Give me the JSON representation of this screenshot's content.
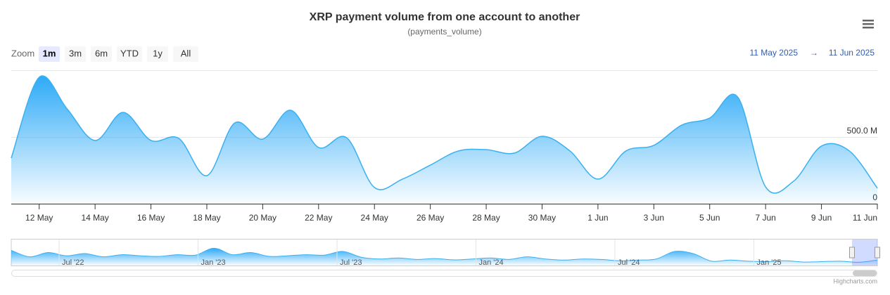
{
  "chart_data": {
    "type": "area",
    "title": "XRP payment volume from one account to another",
    "subtitle": "(payments_volume)",
    "zoom_label": "Zoom",
    "zoom_buttons": [
      "1m",
      "3m",
      "6m",
      "YTD",
      "1y",
      "All"
    ],
    "selected_button": "1m",
    "range_from": "11 May 2025",
    "range_arrow": "→",
    "range_to": "11 Jun 2025",
    "categories": [
      null,
      "12 May",
      null,
      "14 May",
      null,
      "16 May",
      null,
      "18 May",
      null,
      "20 May",
      null,
      "22 May",
      null,
      "24 May",
      null,
      "26 May",
      null,
      "28 May",
      null,
      "30 May",
      null,
      "1 Jun",
      null,
      "3 Jun",
      null,
      "5 Jun",
      null,
      "7 Jun",
      null,
      "9 Jun",
      null,
      "11 Jun"
    ],
    "series": [
      {
        "name": "payments_volume",
        "color": "#3ab0f0",
        "values": [
          342000000,
          947000000,
          710000000,
          474000000,
          684000000,
          474000000,
          489000000,
          210000000,
          605000000,
          484000000,
          700000000,
          421000000,
          495000000,
          121000000,
          184000000,
          289000000,
          395000000,
          405000000,
          379000000,
          505000000,
          395000000,
          184000000,
          395000000,
          437000000,
          589000000,
          642000000,
          800000000,
          126000000,
          168000000,
          432000000,
          395000000,
          116000000
        ]
      }
    ],
    "ylim": [
      0,
      1000000000
    ],
    "yticks": [
      0,
      {
        "value": 500000000,
        "label": "500.0 M"
      }
    ],
    "navigator": {
      "labels": [
        "Jul '22",
        "Jan '23",
        "Jul '23",
        "Jan '24",
        "Jul '24",
        "Jan '25"
      ],
      "values": [
        700000000,
        400000000,
        600000000,
        450000000,
        550000000,
        400000000,
        500000000,
        450000000,
        420000000,
        500000000,
        480000000,
        800000000,
        500000000,
        600000000,
        420000000,
        450000000,
        500000000,
        480000000,
        650000000,
        380000000,
        300000000,
        350000000,
        280000000,
        320000000,
        260000000,
        300000000,
        350000000,
        280000000,
        400000000,
        300000000,
        250000000,
        300000000,
        280000000,
        220000000,
        250000000,
        300000000,
        650000000,
        550000000,
        200000000,
        250000000,
        200000000,
        180000000,
        220000000,
        160000000,
        180000000,
        200000000,
        150000000,
        250000000
      ],
      "ylim": [
        0,
        1200000000
      ]
    },
    "credits": "Highcharts.com"
  }
}
